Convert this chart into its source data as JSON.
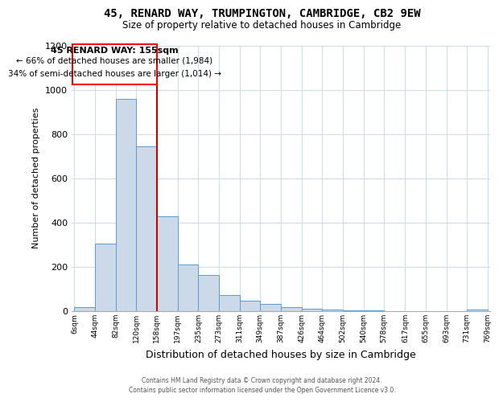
{
  "title": "45, RENARD WAY, TRUMPINGTON, CAMBRIDGE, CB2 9EW",
  "subtitle": "Size of property relative to detached houses in Cambridge",
  "xlabel": "Distribution of detached houses by size in Cambridge",
  "ylabel": "Number of detached properties",
  "bar_color": "#ccd9e8",
  "bar_edge_color": "#5b9bd5",
  "bar_edge_width": 0.7,
  "vline_color": "#cc0000",
  "bin_edges": [
    6,
    44,
    82,
    120,
    158,
    197,
    235,
    273,
    311,
    349,
    387,
    426,
    464,
    502,
    540,
    578,
    617,
    655,
    693,
    731,
    769
  ],
  "bin_labels": [
    "6sqm",
    "44sqm",
    "82sqm",
    "120sqm",
    "158sqm",
    "197sqm",
    "235sqm",
    "273sqm",
    "311sqm",
    "349sqm",
    "387sqm",
    "426sqm",
    "464sqm",
    "502sqm",
    "540sqm",
    "578sqm",
    "617sqm",
    "655sqm",
    "693sqm",
    "731sqm",
    "769sqm"
  ],
  "values": [
    20,
    305,
    960,
    745,
    430,
    210,
    165,
    72,
    47,
    32,
    20,
    12,
    7,
    4,
    2,
    0,
    0,
    0,
    0,
    8
  ],
  "vline_x": 158,
  "ylim": [
    0,
    1200
  ],
  "yticks": [
    0,
    200,
    400,
    600,
    800,
    1000,
    1200
  ],
  "annotation_title": "45 RENARD WAY: 155sqm",
  "annotation_line1": "← 66% of detached houses are smaller (1,984)",
  "annotation_line2": "34% of semi-detached houses are larger (1,014) →",
  "footer_line1": "Contains HM Land Registry data © Crown copyright and database right 2024.",
  "footer_line2": "Contains public sector information licensed under the Open Government Licence v3.0.",
  "background_color": "#ffffff",
  "grid_color": "#d0dce8"
}
